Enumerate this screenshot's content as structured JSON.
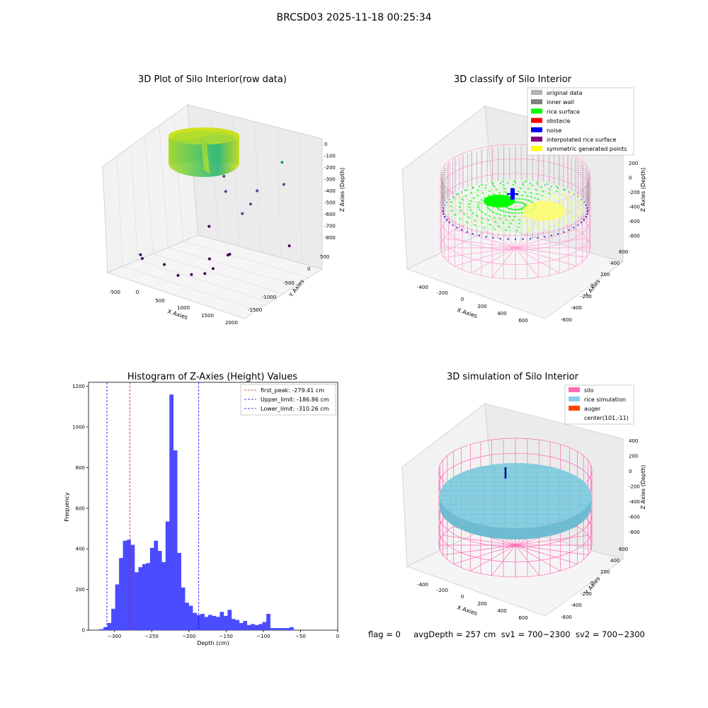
{
  "figure": {
    "suptitle": "BRCSD03 2025-11-18 00:25:34",
    "footer": "flag = 0     avgDepth = 257 cm  sv1 = 700~2300  sv2 = 700~2300"
  },
  "chart_data": [
    {
      "type": "scatter",
      "panel": "raw",
      "title": "3D Plot of Silo Interior(row data)",
      "xlabel": "X Axies",
      "ylabel": "Y Axies",
      "zlabel": "Z Axies (Depth)",
      "x_ticks": [
        "-500",
        "0",
        "500",
        "1000",
        "1500",
        "2000"
      ],
      "y_ticks": [
        "500",
        "0",
        "-500",
        "-1000",
        "-1500"
      ],
      "z_ticks": [
        "0",
        "-100",
        "-200",
        "-300",
        "-400",
        "-500",
        "-600",
        "-700",
        "-800"
      ],
      "xlim": [
        -600,
        2100
      ],
      "ylim": [
        -1700,
        700
      ],
      "zlim": [
        -850,
        50
      ],
      "outlier_points": [
        {
          "x": 1500,
          "y": 400,
          "z": -400
        },
        {
          "x": 1600,
          "y": 300,
          "z": -480
        },
        {
          "x": 1200,
          "y": 100,
          "z": -520
        },
        {
          "x": 1200,
          "y": -100,
          "z": -560
        },
        {
          "x": 1100,
          "y": -200,
          "z": -600
        },
        {
          "x": 800,
          "y": -300,
          "z": -450
        },
        {
          "x": 900,
          "y": -400,
          "z": -500
        },
        {
          "x": 700,
          "y": -600,
          "z": -650
        },
        {
          "x": 1900,
          "y": 0,
          "z": -700
        },
        {
          "x": 1200,
          "y": -800,
          "z": -720
        },
        {
          "x": 1300,
          "y": -900,
          "z": -700
        },
        {
          "x": 1100,
          "y": -1100,
          "z": -760
        },
        {
          "x": 900,
          "y": -900,
          "z": -750
        },
        {
          "x": 1000,
          "y": -1200,
          "z": -780
        },
        {
          "x": 800,
          "y": -1300,
          "z": -790
        },
        {
          "x": 600,
          "y": -1400,
          "z": -800
        },
        {
          "x": 200,
          "y": -1200,
          "z": -800
        },
        {
          "x": -400,
          "y": -1000,
          "z": -820
        },
        {
          "x": -300,
          "y": -1100,
          "z": -820
        }
      ]
    },
    {
      "type": "scatter",
      "panel": "classify",
      "title": "3D classify of Silo Interior",
      "xlabel": "X Axies",
      "ylabel": "Y Axies",
      "zlabel": "Z Axies (Depth)",
      "x_ticks": [
        "-400",
        "-200",
        "0",
        "200",
        "400",
        "600"
      ],
      "y_ticks": [
        "600",
        "400",
        "200",
        "0",
        "-200",
        "-400",
        "-600"
      ],
      "z_ticks": [
        "200",
        "0",
        "-200",
        "-400",
        "-600",
        "-800"
      ],
      "legend": [
        {
          "label": "original data",
          "color": "#b3b3b3"
        },
        {
          "label": "inner wall",
          "color": "#808080"
        },
        {
          "label": "rice surface",
          "color": "#00ff00"
        },
        {
          "label": "obstacle",
          "color": "#ff0000"
        },
        {
          "label": "noise",
          "color": "#0000ff"
        },
        {
          "label": "interpolated rice surface",
          "color": "#800080"
        },
        {
          "label": "symmetric generated points",
          "color": "#ffff00"
        }
      ],
      "legend_loc": "upper right"
    },
    {
      "type": "bar",
      "panel": "histogram",
      "title": "Histogram of Z-Axies (Height) Values",
      "xlabel": "Depth (cm)",
      "ylabel": "Frequency",
      "xlim": [
        -335,
        0
      ],
      "ylim": [
        0,
        1220
      ],
      "x_ticks": [
        -300,
        -250,
        -200,
        -150,
        -100,
        -50,
        0
      ],
      "y_ticks": [
        0,
        200,
        400,
        600,
        800,
        1000,
        1200
      ],
      "bar_color": "#4b4bff",
      "bin_start": -320,
      "bin_width": 5.21,
      "values": [
        5,
        15,
        35,
        105,
        225,
        355,
        440,
        445,
        420,
        285,
        310,
        325,
        330,
        405,
        440,
        390,
        335,
        535,
        1160,
        885,
        380,
        210,
        135,
        120,
        85,
        75,
        80,
        65,
        75,
        70,
        65,
        90,
        70,
        100,
        55,
        50,
        35,
        45,
        25,
        30,
        25,
        30,
        40,
        80,
        10,
        10,
        10,
        10,
        10,
        15
      ],
      "vlines": [
        {
          "x": -279.41,
          "label": "first_peak: -279.41 cm",
          "color": "#ff0000"
        },
        {
          "x": -186.86,
          "label": "Upper_limit: -186.86 cm",
          "color": "#0000ff"
        },
        {
          "x": -310.26,
          "label": "Lower_limit: -310.26 cm",
          "color": "#0000ff"
        }
      ],
      "legend_loc": "upper right"
    },
    {
      "type": "scatter",
      "panel": "simulation",
      "title": "3D simulation of Silo Interior",
      "xlabel": "X Axies",
      "ylabel": "Y Axies",
      "zlabel": "Z Axies (Depth)",
      "x_ticks": [
        "-400",
        "-200",
        "0",
        "200",
        "400",
        "600"
      ],
      "y_ticks": [
        "600",
        "400",
        "200",
        "0",
        "-200",
        "-400",
        "-600"
      ],
      "z_ticks": [
        "400",
        "200",
        "0",
        "-200",
        "-400",
        "-600",
        "-800"
      ],
      "legend": [
        {
          "label": "silo",
          "color": "#ff69b4"
        },
        {
          "label": "rice simulation",
          "color": "#87ceeb"
        },
        {
          "label": "auger",
          "color": "#ff4500"
        },
        {
          "label": "center(101,-11)",
          "color": ""
        }
      ],
      "legend_loc": "upper right"
    }
  ]
}
